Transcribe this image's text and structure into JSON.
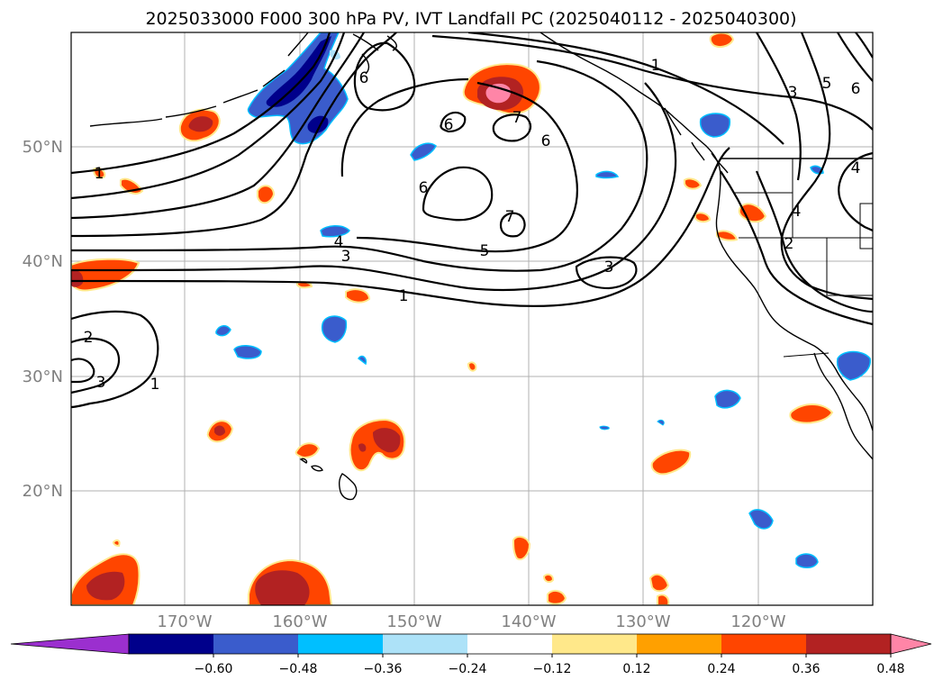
{
  "title": "2025033000 F000 300 hPa PV, IVT Landfall PC (2025040112 - 2025040300)",
  "lat_labels": [
    "50°N",
    "40°N",
    "30°N",
    "20°N"
  ],
  "lon_labels": [
    "170°W",
    "160°W",
    "150°W",
    "140°W",
    "130°W",
    "120°W"
  ],
  "colorbar": {
    "tick_labels": [
      "−0.60",
      "−0.48",
      "−0.36",
      "−0.24",
      "−0.12",
      "0.12",
      "0.24",
      "0.36",
      "0.48",
      "0.60"
    ],
    "colors": [
      "#9b2fcf",
      "#00008b",
      "#3a5ccc",
      "#00bfff",
      "#ade2f8",
      "#ffffff",
      "#ffe88a",
      "#ffa000",
      "#ff4500",
      "#b22222",
      "#ff85a7"
    ]
  },
  "contour_labels": [
    "1",
    "1",
    "1",
    "1",
    "2",
    "2",
    "3",
    "3",
    "3",
    "3",
    "4",
    "4",
    "4",
    "5",
    "5",
    "6",
    "6",
    "6",
    "6",
    "6",
    "7",
    "7"
  ],
  "colors": {
    "contour": "#000000",
    "grid": "#b0b0b0",
    "coast": "#000000"
  }
}
